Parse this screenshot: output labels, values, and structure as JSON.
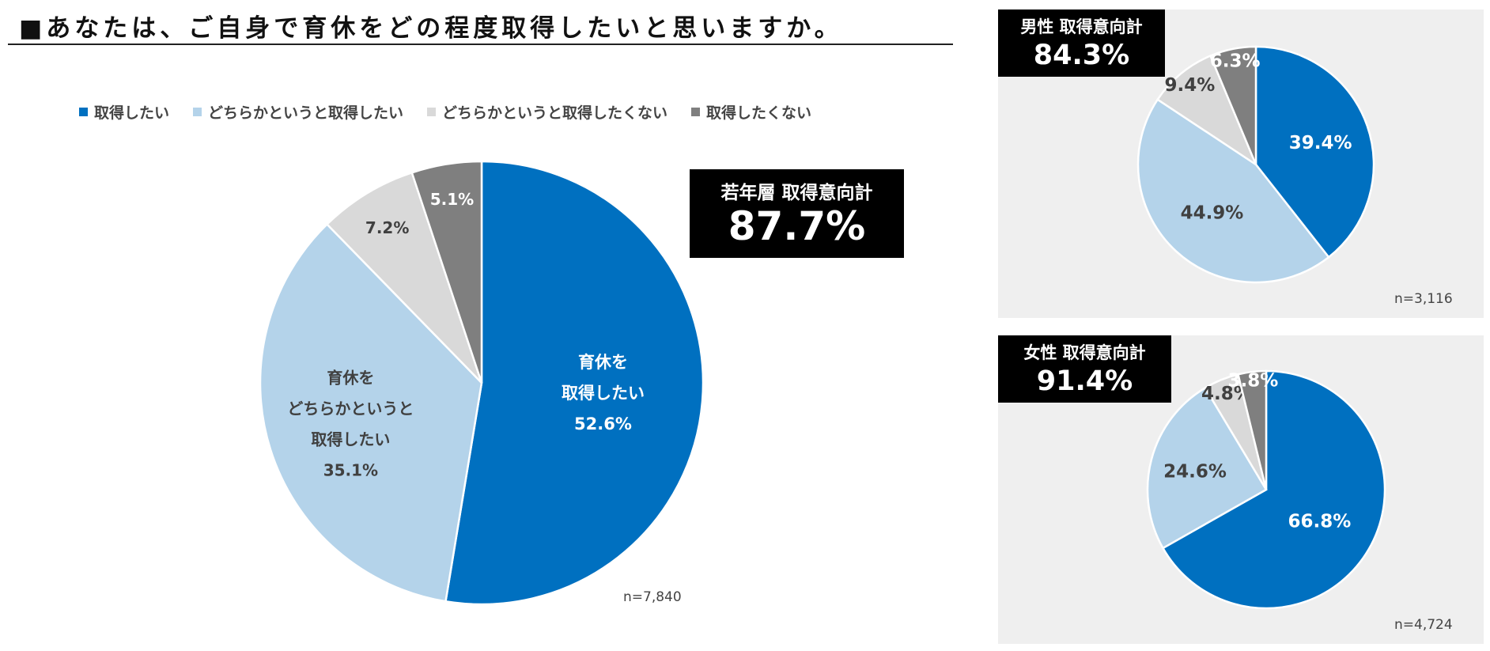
{
  "title": "■あなたは、ご自身で育休をどの程度取得したいと思いますか。",
  "legend": [
    {
      "label": "取得したい",
      "color": "#0070c0"
    },
    {
      "label": "どちらかというと取得したい",
      "color": "#b4d3ea"
    },
    {
      "label": "どちらかというと取得したくない",
      "color": "#d9d9d9"
    },
    {
      "label": "取得したくない",
      "color": "#7f7f7f"
    }
  ],
  "chart_data": [
    {
      "type": "pie",
      "group": "若年層",
      "categories": [
        "取得したい",
        "どちらかというと取得したい",
        "どちらかというと取得したくない",
        "取得したくない"
      ],
      "values": [
        52.6,
        35.1,
        7.2,
        5.1
      ],
      "slice_labels": [
        [
          "育休を",
          "取得したい",
          "52.6%"
        ],
        [
          "育休を",
          "どちらかというと",
          "取得したい",
          "35.1%"
        ],
        [
          "7.2%"
        ],
        [
          "5.1%"
        ]
      ],
      "total_label": "若年層 取得意向計",
      "total_value": "87.7%",
      "n": "n=7,840"
    },
    {
      "type": "pie",
      "group": "男性",
      "categories": [
        "取得したい",
        "どちらかというと取得したい",
        "どちらかというと取得したくない",
        "取得したくない"
      ],
      "values": [
        39.4,
        44.9,
        9.4,
        6.3
      ],
      "slice_labels": [
        [
          "39.4%"
        ],
        [
          "44.9%"
        ],
        [
          "9.4%"
        ],
        [
          "6.3%"
        ]
      ],
      "total_label": "男性 取得意向計",
      "total_value": "84.3%",
      "n": "n=3,116"
    },
    {
      "type": "pie",
      "group": "女性",
      "categories": [
        "取得したい",
        "どちらかというと取得したい",
        "どちらかというと取得したくない",
        "取得したくない"
      ],
      "values": [
        66.8,
        24.6,
        4.8,
        3.8
      ],
      "slice_labels": [
        [
          "66.8%"
        ],
        [
          "24.6%"
        ],
        [
          "4.8%"
        ],
        [
          "3.8%"
        ]
      ],
      "total_label": "女性 取得意向計",
      "total_value": "91.4%",
      "n": "n=4,724"
    }
  ]
}
